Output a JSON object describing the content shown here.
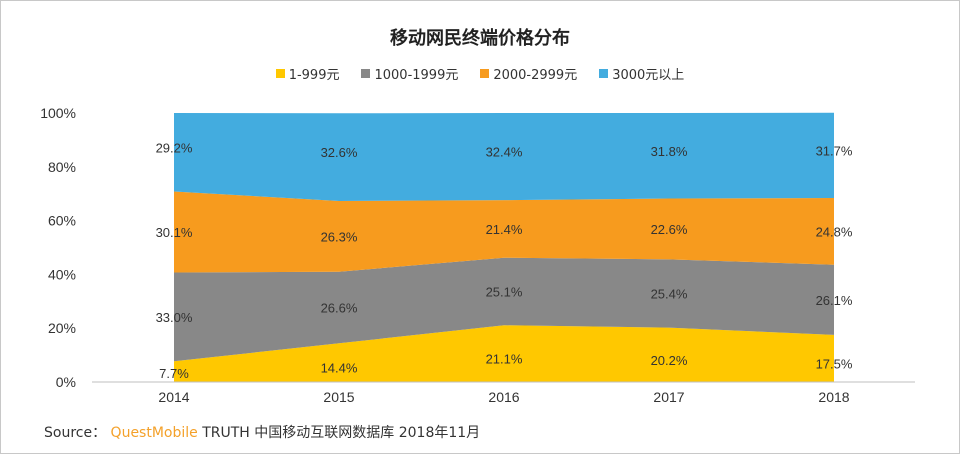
{
  "chart_data": {
    "type": "area",
    "title": "移动网民终端价格分布",
    "categories": [
      "2014",
      "2015",
      "2016",
      "2017",
      "2018"
    ],
    "ylim": [
      0,
      100
    ],
    "yticks": [
      "0%",
      "20%",
      "40%",
      "60%",
      "80%",
      "100%"
    ],
    "stacked": true,
    "legend_position": "top",
    "series": [
      {
        "name": "1-999元",
        "color": "#ffc800",
        "values": [
          7.7,
          14.4,
          21.1,
          20.2,
          17.5
        ],
        "labels": [
          "7.7%",
          "14.4%",
          "21.1%",
          "20.2%",
          "17.5%"
        ]
      },
      {
        "name": "1000-1999元",
        "color": "#888888",
        "values": [
          33.0,
          26.6,
          25.1,
          25.4,
          26.1
        ],
        "labels": [
          "33.0%",
          "26.6%",
          "25.1%",
          "25.4%",
          "26.1%"
        ]
      },
      {
        "name": "2000-2999元",
        "color": "#f79b1e",
        "values": [
          30.1,
          26.3,
          21.4,
          22.6,
          24.8
        ],
        "labels": [
          "30.1%",
          "26.3%",
          "21.4%",
          "22.6%",
          "24.8%"
        ]
      },
      {
        "name": "3000元以上",
        "color": "#43acdf",
        "values": [
          29.2,
          32.6,
          32.4,
          31.8,
          31.7
        ],
        "labels": [
          "29.2%",
          "32.6%",
          "32.4%",
          "31.8%",
          "31.7%"
        ]
      }
    ]
  },
  "source": {
    "prefix": "Source：",
    "brand": "QuestMobile",
    "suffix": " TRUTH 中国移动互联网数据库 2018年11月"
  }
}
